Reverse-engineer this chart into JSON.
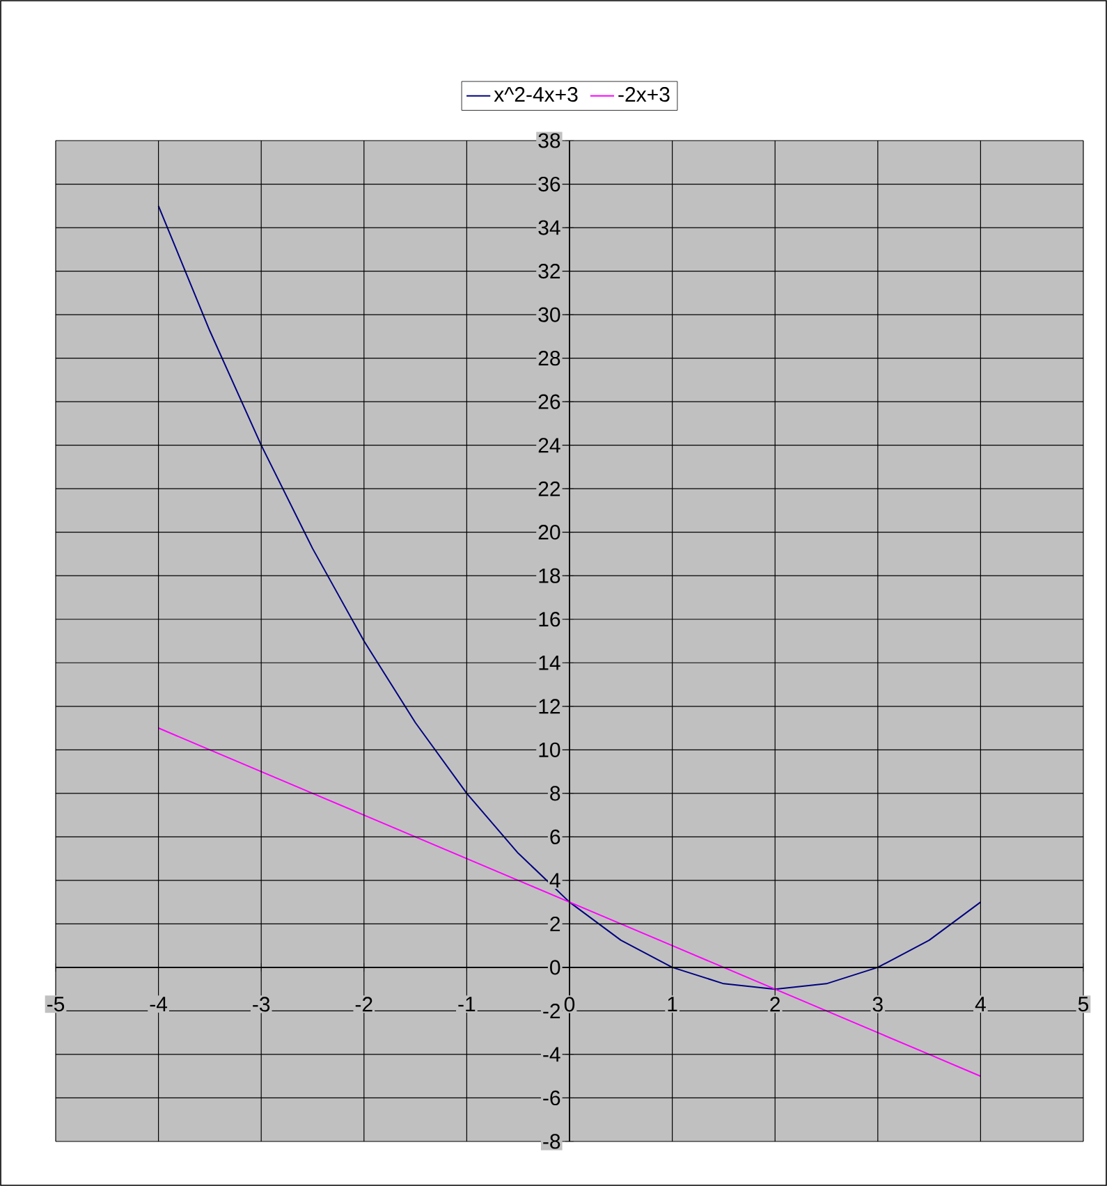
{
  "chart_data": {
    "type": "line",
    "x": [
      -4,
      -3.5,
      -3,
      -2.5,
      -2,
      -1.5,
      -1,
      -0.5,
      0,
      0.5,
      1,
      1.5,
      2,
      2.5,
      3,
      3.5,
      4
    ],
    "series": [
      {
        "name": "x^2-4x+3",
        "color": "#000080",
        "values": [
          35,
          29.25,
          24,
          19.25,
          15,
          11.25,
          8,
          5.25,
          3,
          1.25,
          0,
          -0.75,
          -1,
          -0.75,
          0,
          1.25,
          3
        ]
      },
      {
        "name": "-2x+3",
        "color": "#ff00ff",
        "values": [
          11,
          10,
          9,
          8,
          7,
          6,
          5,
          4,
          3,
          2,
          1,
          0,
          -1,
          -2,
          -3,
          -4,
          -5
        ]
      }
    ],
    "xlim": [
      -5,
      5
    ],
    "ylim": [
      -8,
      38
    ],
    "xticks": [
      -5,
      -4,
      -3,
      -2,
      -1,
      0,
      1,
      2,
      3,
      4,
      5
    ],
    "yticks": [
      -8,
      -6,
      -4,
      -2,
      0,
      2,
      4,
      6,
      8,
      10,
      12,
      14,
      16,
      18,
      20,
      22,
      24,
      26,
      28,
      30,
      32,
      34,
      36,
      38
    ],
    "grid": true,
    "legend": "top",
    "marker": "none",
    "line_style": "solid"
  }
}
